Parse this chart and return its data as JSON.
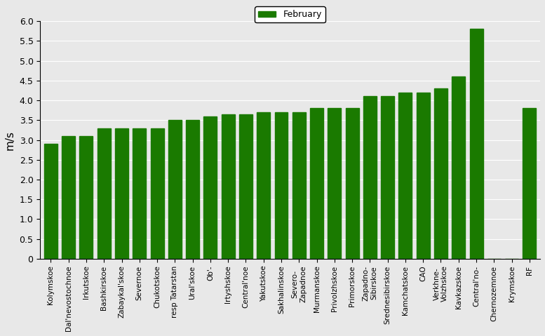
{
  "categories": [
    "Kolymskoe",
    "Dal'nevostochnoe",
    "Irkutskoe",
    "Bashkirskoe",
    "Zabaykal'skoe",
    "Severnoe",
    "Chukotskoe",
    "resp Tatarstan",
    "Ural'skoe",
    "Ob'-",
    "Irtyshskoe",
    "Central'noe",
    "Yakutskoe",
    "Sakhalinskoe",
    "Severo-\nZapadnoe",
    "Murmanskoe",
    "Privolzhskoe",
    "Primorskoe",
    "Zapadno-\nSibirskoe",
    "Srednesibirskoe",
    "Kamchatskoe",
    "CAO",
    "Verkhne-\nVolzhskoe",
    "Kavkazskoe",
    "Central'no-",
    "Chernozemnoe",
    "Krymskoe",
    "RF"
  ],
  "values": [
    2.9,
    3.1,
    3.1,
    3.3,
    3.3,
    3.3,
    3.3,
    3.5,
    3.5,
    3.6,
    3.65,
    3.65,
    3.7,
    3.7,
    3.7,
    3.8,
    3.8,
    3.8,
    4.1,
    4.1,
    4.2,
    4.2,
    4.3,
    4.6,
    5.8,
    0.0,
    0.0,
    3.8
  ],
  "bar_color": "#1a7a00",
  "ylabel": "m/s",
  "ylim": [
    0,
    6
  ],
  "yticks": [
    0,
    0.5,
    1.0,
    1.5,
    2.0,
    2.5,
    3.0,
    3.5,
    4.0,
    4.5,
    5.0,
    5.5,
    6.0
  ],
  "legend_label": "February",
  "legend_color": "#1a7a00",
  "bg_color": "#e8e8e8",
  "title": ""
}
